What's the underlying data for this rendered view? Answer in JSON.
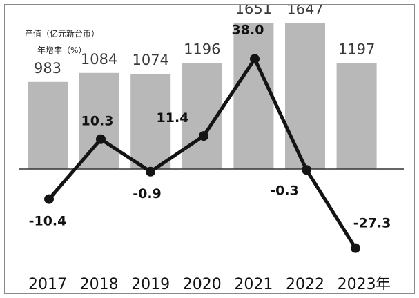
{
  "chart_data": {
    "type": "bar+line",
    "categories": [
      "2017",
      "2018",
      "2019",
      "2020",
      "2021",
      "2022",
      "2023"
    ],
    "x_suffix": "年",
    "series": [
      {
        "name": "产值（亿元新台币）",
        "type": "bar",
        "values": [
          983,
          1084,
          1074,
          1196,
          1651,
          1647,
          1197
        ],
        "value_labels": [
          "983",
          "1084",
          "1074",
          "1196",
          "1651",
          "1647",
          "1197"
        ],
        "color": "#b8b8b8"
      },
      {
        "name": "年增率（%）",
        "type": "line",
        "values": [
          -10.4,
          10.3,
          -0.9,
          11.4,
          38.0,
          -0.3,
          -27.3
        ],
        "value_labels": [
          "-10.4",
          "10.3",
          "-0.9",
          "11.4",
          "38.0",
          "-0.3",
          "-27.3"
        ],
        "color": "#141414"
      }
    ],
    "bar_ylim": [
      0,
      1750
    ],
    "line_ylim": [
      -30,
      40
    ],
    "grid": false,
    "legend": "top-left"
  }
}
